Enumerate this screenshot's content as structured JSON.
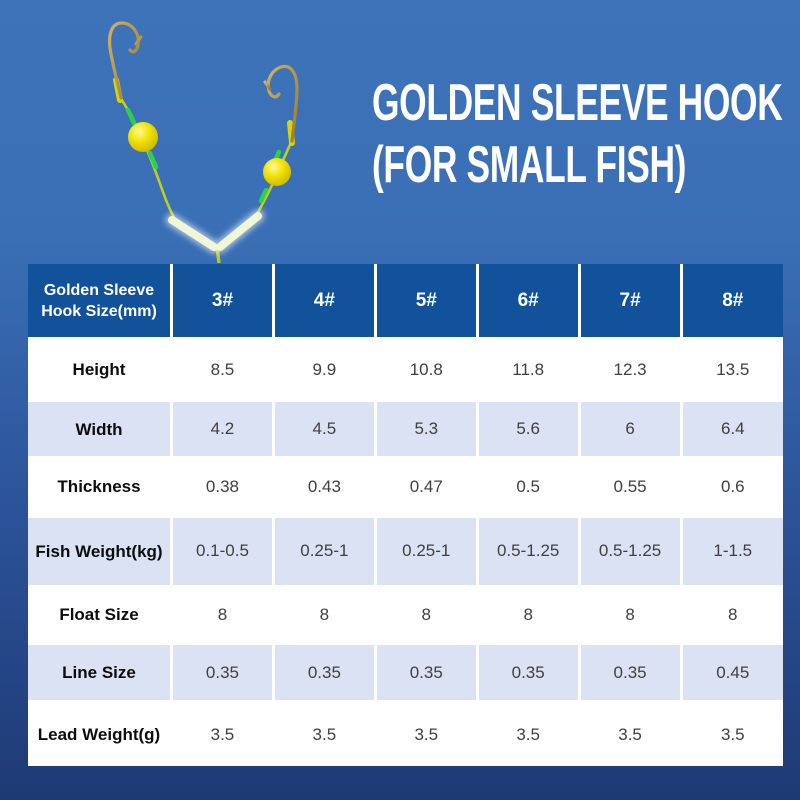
{
  "title": {
    "line1": "GOLDEN SLEEVE HOOK",
    "line2": "(FOR SMALL FISH)"
  },
  "illustration": {
    "name": "golden-sleeve-hook-rig",
    "colors": {
      "line": "#c2ce1e",
      "hook": "#b5913c",
      "bead": "#f2e204",
      "green_sleeve": "#2bd14b",
      "yellow_sleeve": "#d8d40a",
      "glow_tube": "#f1f6d4"
    }
  },
  "table": {
    "colors": {
      "header_bg": "#11529B",
      "row_bg": "#ffffff",
      "row_alt_bg": "#dbe2f4",
      "divider": "#ffffff"
    },
    "header": {
      "label_line1": "Golden Sleeve",
      "label_line2": "Hook Size(mm)",
      "columns": [
        "3#",
        "4#",
        "5#",
        "6#",
        "7#",
        "8#"
      ]
    },
    "rows": [
      {
        "key": "height",
        "label": "Height",
        "values": [
          "8.5",
          "9.9",
          "10.8",
          "11.8",
          "12.3",
          "13.5"
        ]
      },
      {
        "key": "width",
        "label": "Width",
        "values": [
          "4.2",
          "4.5",
          "5.3",
          "5.6",
          "6",
          "6.4"
        ]
      },
      {
        "key": "thickness",
        "label": "Thickness",
        "values": [
          "0.38",
          "0.43",
          "0.47",
          "0.5",
          "0.55",
          "0.6"
        ]
      },
      {
        "key": "fish-weight",
        "label": "Fish Weight(kg)",
        "values": [
          "0.1-0.5",
          "0.25-1",
          "0.25-1",
          "0.5-1.25",
          "0.5-1.25",
          "1-1.5"
        ]
      },
      {
        "key": "float-size",
        "label": "Float Size",
        "values": [
          "8",
          "8",
          "8",
          "8",
          "8",
          "8"
        ]
      },
      {
        "key": "line-size",
        "label": "Line Size",
        "values": [
          "0.35",
          "0.35",
          "0.35",
          "0.35",
          "0.35",
          "0.45"
        ]
      },
      {
        "key": "lead-weight",
        "label": "Lead Weight(g)",
        "values": [
          "3.5",
          "3.5",
          "3.5",
          "3.5",
          "3.5",
          "3.5"
        ]
      }
    ]
  }
}
